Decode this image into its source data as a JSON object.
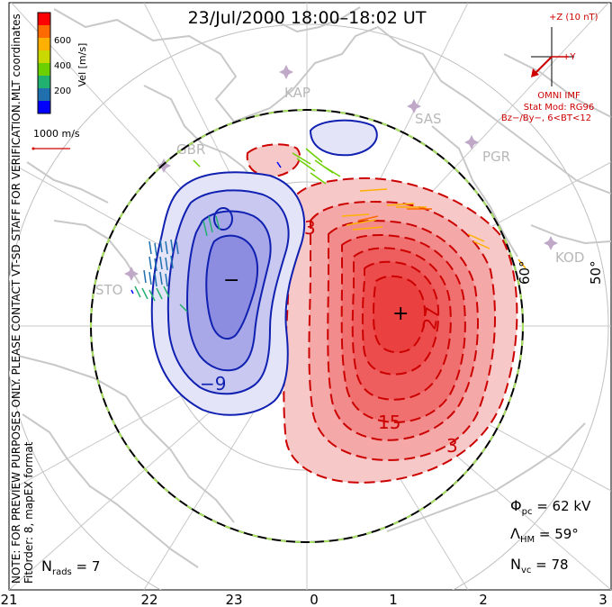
{
  "title": "23/Jul/2000 18:00–18:02 UT",
  "side_text": {
    "coords": "MLT coordinates",
    "note": "NOTE: FOR PREVIEW PURPOSES ONLY. PLEASE CONTACT VT-SD STAFF FOR VERIFICATION.",
    "fit": "FitOrder: 8, mapEX format"
  },
  "colorbar": {
    "label": "Vel [m/s]",
    "ticks": [
      "600",
      "400",
      "200"
    ],
    "colors": [
      "#ff0000",
      "#ff6a00",
      "#ffb000",
      "#c8d800",
      "#6cd000",
      "#22b070",
      "#2070b0",
      "#0000ff"
    ]
  },
  "vector_scale": {
    "label": "1000 m/s",
    "color": "#d00000"
  },
  "imf": {
    "axis_z": "+Z (10 nT)",
    "axis_y": "+Y",
    "source": "OMNI IMF",
    "model": "Stat Mod: RG96",
    "conditions": "Bz−/By−, 6<BT<12",
    "color": "#cc0000"
  },
  "stations": [
    "KAP",
    "SAS",
    "PGR",
    "KOD",
    "GBR",
    "STO"
  ],
  "lat_labels": [
    "60°",
    "50°"
  ],
  "contour_labels": {
    "negative": [
      "−9"
    ],
    "positive": [
      "3",
      "15",
      "27",
      "3"
    ]
  },
  "markers": {
    "min": "−",
    "max": "+"
  },
  "stats": {
    "phi_pc_sym": "Φ",
    "phi_pc_sub": "pc",
    "phi_pc_val": " = 62 kV",
    "lambda_hm_sym": "Λ",
    "lambda_hm_sub": "HM",
    "lambda_hm_val": " = 59°",
    "n_vc_sym": "N",
    "n_vc_sub": "vc",
    "n_vc_val": " = 78",
    "n_rads_sym": "N",
    "n_rads_sub": "rads",
    "n_rads_val": " = 7"
  },
  "mlt_ticks": [
    "21",
    "22",
    "23",
    "0",
    "1",
    "2",
    "3"
  ],
  "colors": {
    "positive_fill": "#f04848",
    "positive_line": "#cc0000",
    "negative_fill": "#7070dd",
    "negative_line": "#1020b0",
    "land": "#c8c8c8",
    "grid": "#c0c0c0",
    "boundary_dash": "#a8e060"
  }
}
